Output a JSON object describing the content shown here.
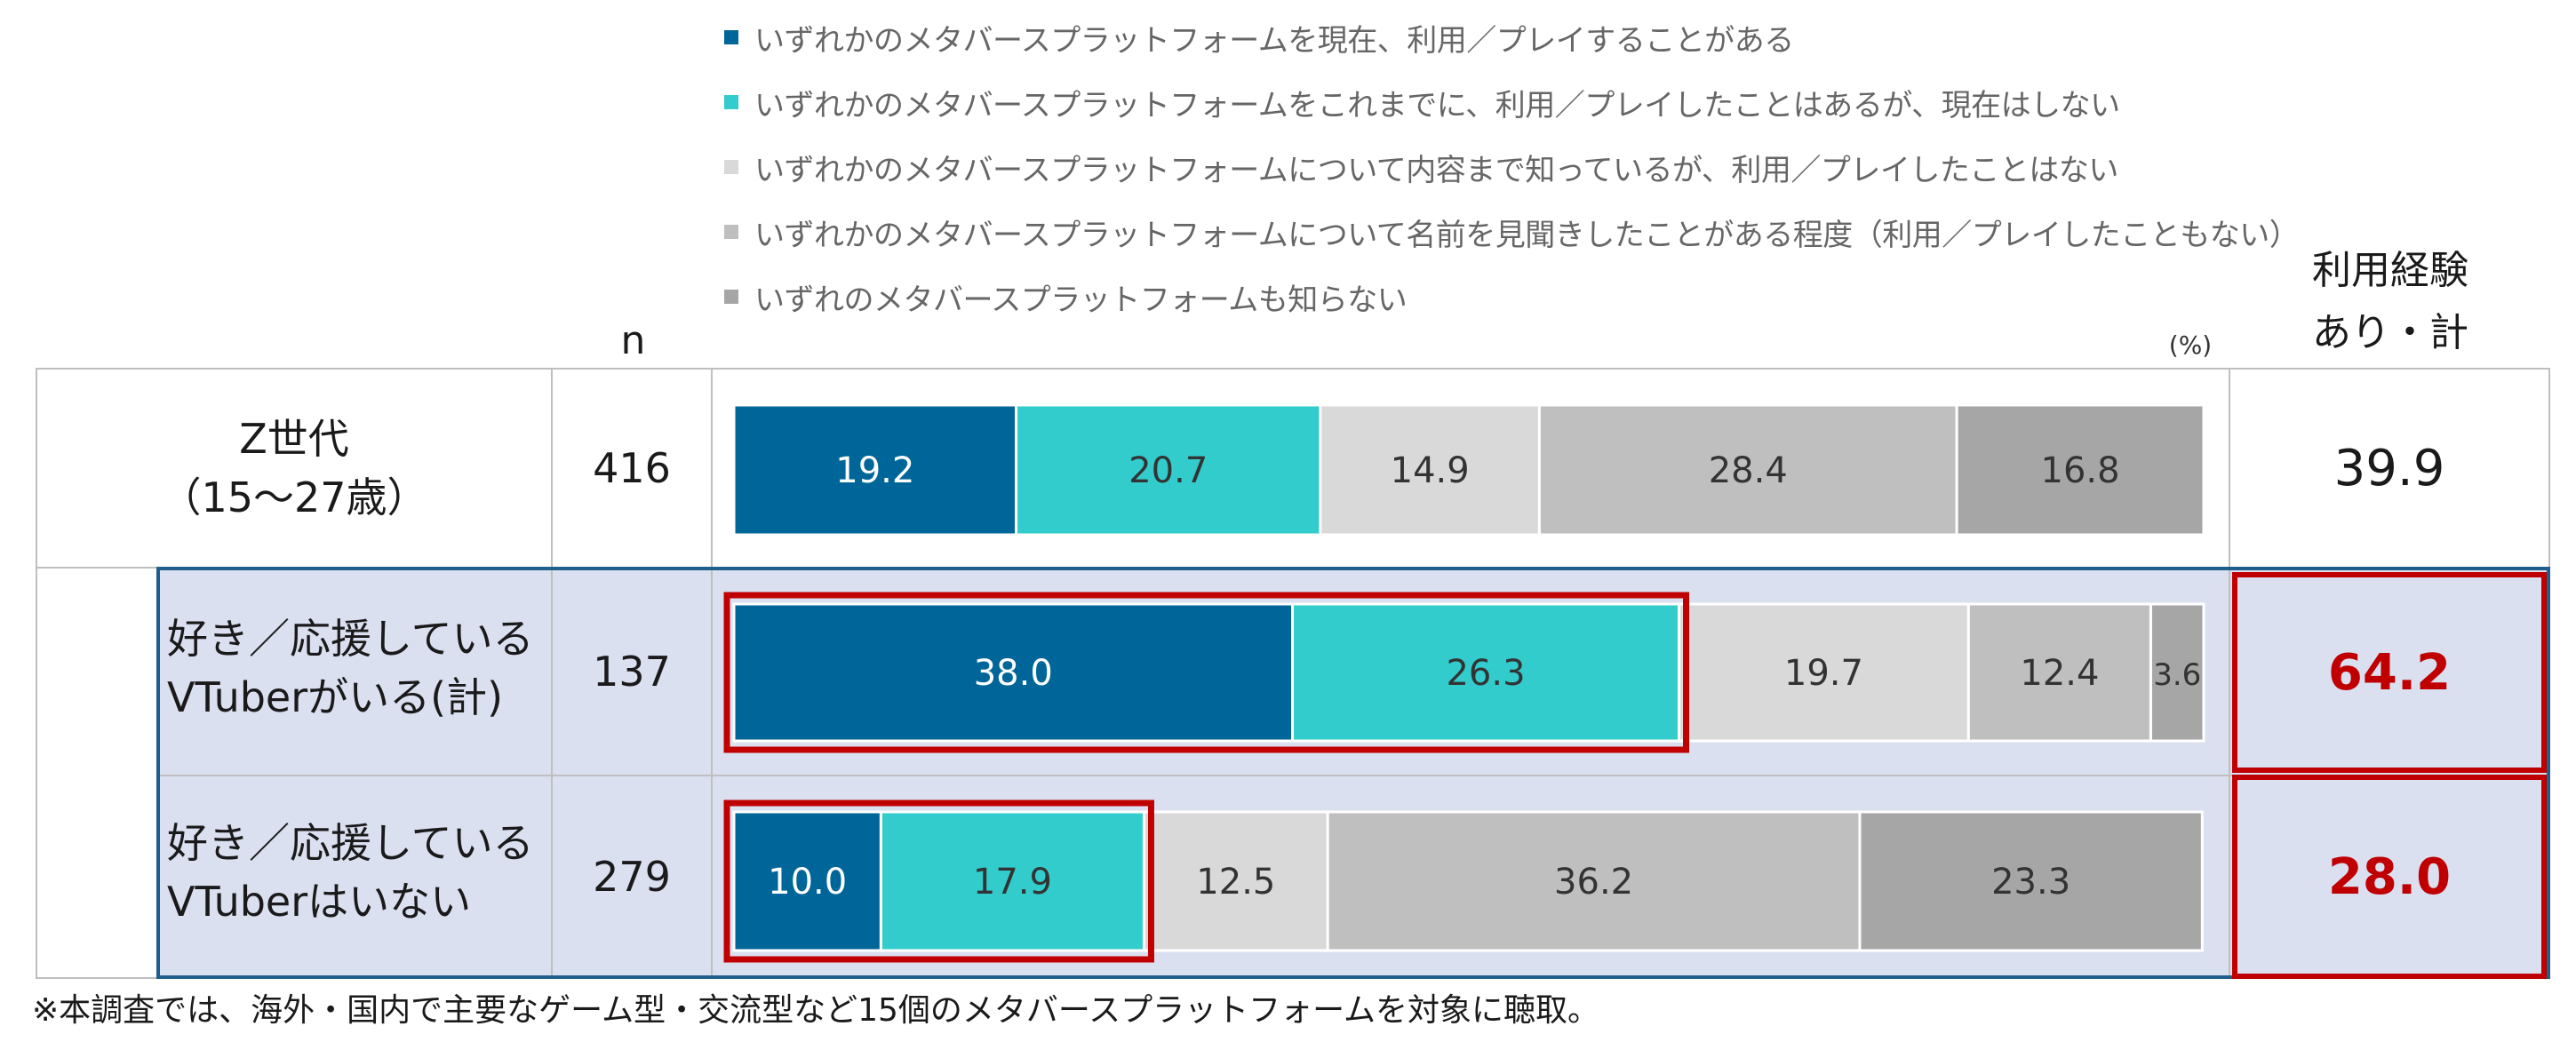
{
  "chart_data": {
    "type": "bar",
    "orientation": "horizontal-stacked-100",
    "unit_label": "(%)",
    "n_header": "n",
    "total_header": [
      "利用経験",
      "あり・計"
    ],
    "series": [
      {
        "name": "いずれかのメタバースプラットフォームを現在、利用／プレイすることがある",
        "color": "#006699",
        "label_color": "#ffffff"
      },
      {
        "name": "いずれかのメタバースプラットフォームをこれまでに、利用／プレイしたことはあるが、現在はしない",
        "color": "#33cccc",
        "label_color": "#333333"
      },
      {
        "name": "いずれかのメタバースプラットフォームについて内容まで知っているが、利用／プレイしたことはない",
        "color": "#d9d9d9",
        "label_color": "#333333"
      },
      {
        "name": "いずれかのメタバースプラットフォームについて名前を見聞きしたことがある程度（利用／プレイしたこともない）",
        "color": "#bfbfbf",
        "label_color": "#333333"
      },
      {
        "name": "いずれのメタバースプラットフォームも知らない",
        "color": "#a6a6a6",
        "label_color": "#333333"
      }
    ],
    "rows": [
      {
        "label": [
          "Z世代",
          "（15～27歳）"
        ],
        "n": "416",
        "values": [
          19.2,
          20.7,
          14.9,
          28.4,
          16.8
        ],
        "labels": [
          "19.2",
          "20.7",
          "14.9",
          "28.4",
          "16.8"
        ],
        "total": "39.9",
        "highlight": false
      },
      {
        "label": [
          "好き／応援している",
          "VTuberがいる(計)"
        ],
        "n": "137",
        "values": [
          38.0,
          26.3,
          19.7,
          12.4,
          3.6
        ],
        "labels": [
          "38.0",
          "26.3",
          "19.7",
          "12.4",
          "3.6"
        ],
        "total": "64.2",
        "highlight": true
      },
      {
        "label": [
          "好き／応援している",
          "VTuberはいない"
        ],
        "n": "279",
        "values": [
          10.0,
          17.9,
          12.5,
          36.2,
          23.3
        ],
        "labels": [
          "10.0",
          "17.9",
          "12.5",
          "36.2",
          "23.3"
        ],
        "total": "28.0",
        "highlight": true
      }
    ],
    "xlim": [
      0,
      100
    ]
  },
  "footnote": "※本調査では、海外・国内で主要なゲーム型・交流型など15個のメタバースプラットフォームを対象に聴取。",
  "colors": {
    "highlight_bg": "#dae0f0",
    "highlight_border": "#1f5f8b",
    "emphasis_border": "#c00000"
  }
}
